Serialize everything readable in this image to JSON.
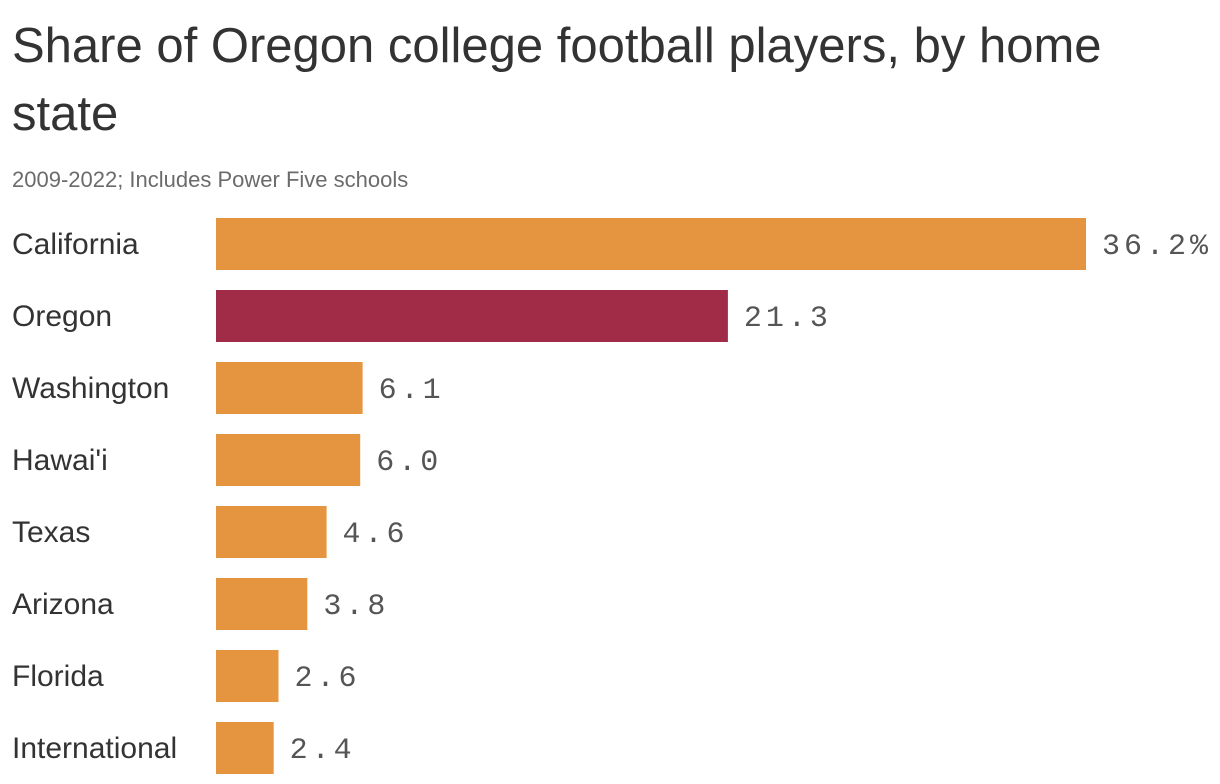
{
  "chart_data": {
    "type": "bar",
    "orientation": "horizontal",
    "title": "Share of Oregon college football players, by home state",
    "subtitle": "2009-2022; Includes Power Five schools",
    "categories": [
      "California",
      "Oregon",
      "Washington",
      "Hawai'i",
      "Texas",
      "Arizona",
      "Florida",
      "International"
    ],
    "values": [
      36.2,
      21.3,
      6.1,
      6.0,
      4.6,
      3.8,
      2.6,
      2.4
    ],
    "value_labels": [
      "36.2%",
      "21.3",
      "6.1",
      "6.0",
      "4.6",
      "3.8",
      "2.6",
      "2.4"
    ],
    "unit": "%",
    "highlight_category": "Oregon",
    "xlim": [
      0,
      36.2
    ],
    "grid": false,
    "legend": "none",
    "colors": {
      "default": "#e59440",
      "highlight": "#a12c48"
    }
  }
}
